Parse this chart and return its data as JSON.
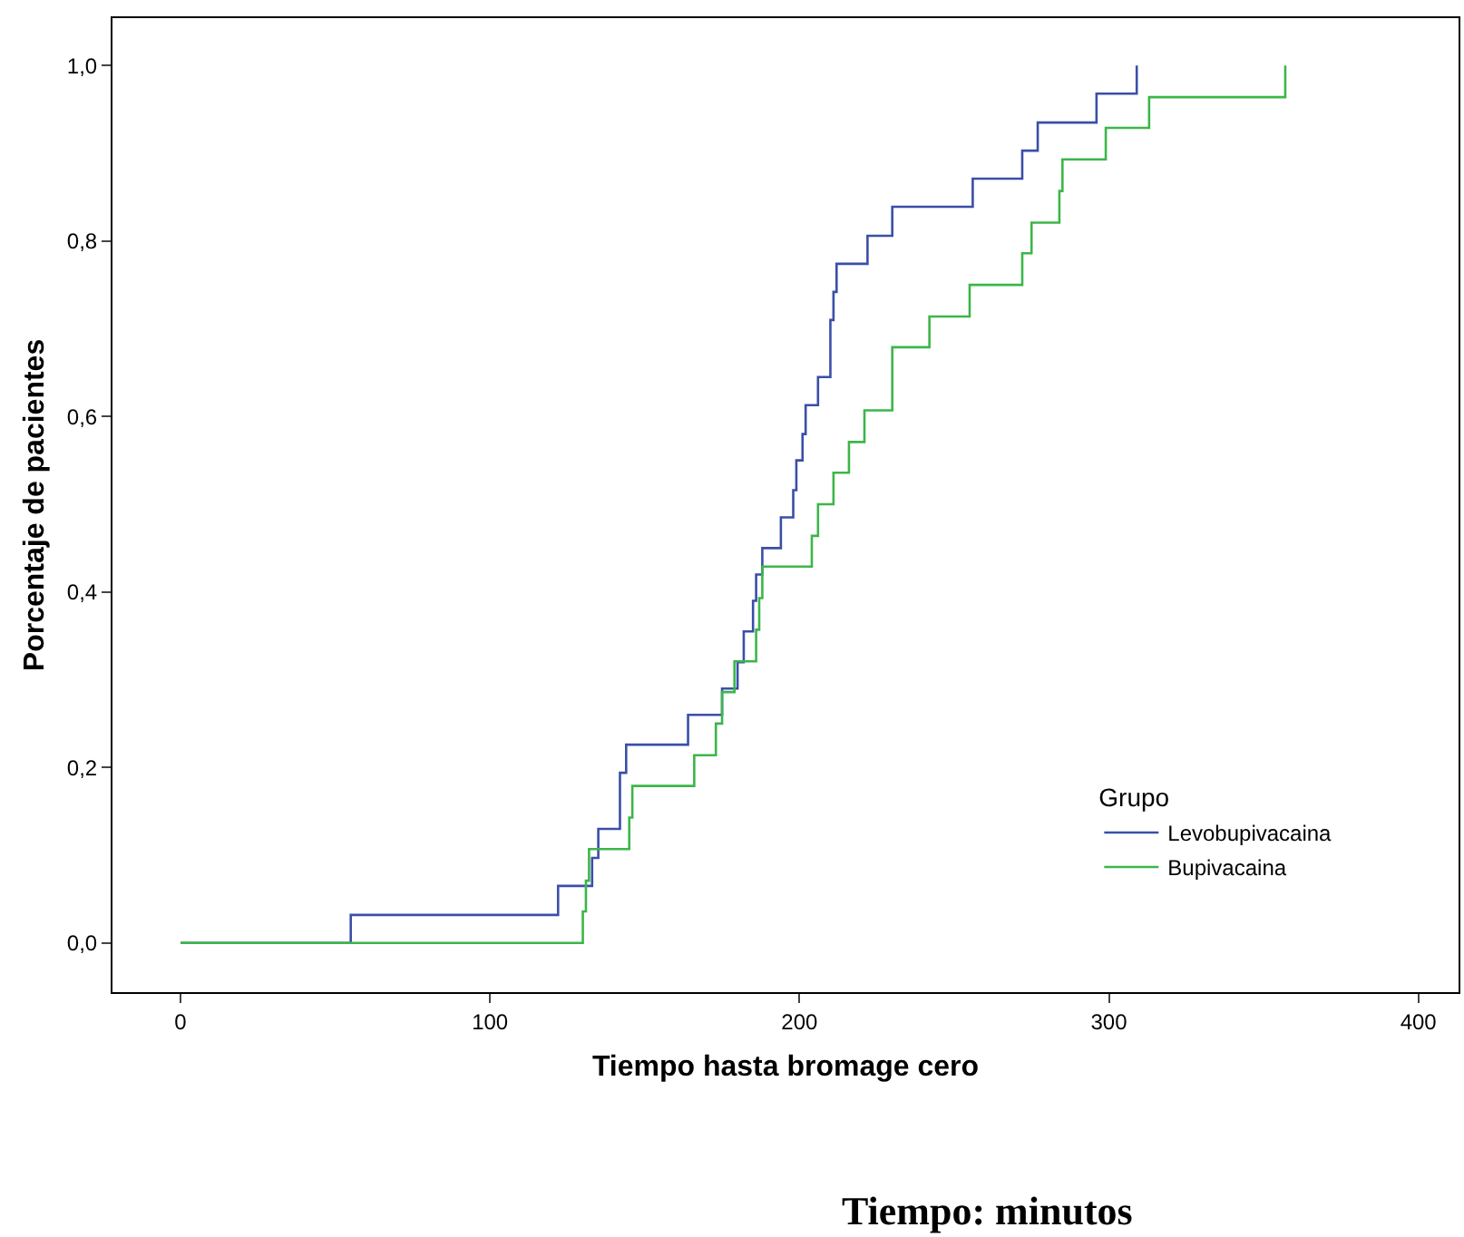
{
  "chart_data": {
    "type": "step",
    "xlabel": "Tiempo hasta bromage cero",
    "ylabel": "Porcentaje de pacientes",
    "legend_title": "Grupo",
    "annotations": [
      "Tiempo: minutos"
    ],
    "series": [
      {
        "name": "Levobupivacaina",
        "color": "#3a4fa8",
        "x": [
          0,
          55,
          122,
          133,
          135,
          142,
          144,
          164,
          175,
          180,
          182,
          185,
          186,
          188,
          194,
          198,
          199,
          201,
          202,
          206,
          210,
          211,
          212,
          222,
          230,
          256,
          272,
          277,
          296,
          309
        ],
        "values": [
          0,
          0.032,
          0.065,
          0.097,
          0.13,
          0.194,
          0.226,
          0.26,
          0.29,
          0.32,
          0.355,
          0.39,
          0.42,
          0.45,
          0.485,
          0.516,
          0.55,
          0.58,
          0.613,
          0.645,
          0.71,
          0.742,
          0.774,
          0.806,
          0.839,
          0.871,
          0.903,
          0.935,
          0.968,
          1.0
        ]
      },
      {
        "name": "Bupivacaina",
        "color": "#3cb64a",
        "x": [
          0,
          130,
          131,
          132,
          145,
          146,
          166,
          173,
          175,
          179,
          186,
          187,
          188,
          204,
          206,
          211,
          216,
          221,
          230,
          242,
          255,
          272,
          275,
          284,
          285,
          299,
          313,
          357
        ],
        "values": [
          0,
          0.036,
          0.071,
          0.107,
          0.143,
          0.179,
          0.214,
          0.25,
          0.286,
          0.321,
          0.357,
          0.393,
          0.429,
          0.464,
          0.5,
          0.536,
          0.571,
          0.607,
          0.679,
          0.714,
          0.75,
          0.786,
          0.821,
          0.857,
          0.893,
          0.929,
          0.964,
          1.0
        ]
      }
    ],
    "xlim": [
      -22,
      413
    ],
    "xticks": [
      0,
      100,
      200,
      300,
      400
    ],
    "ylim": [
      -0.056,
      1.054
    ],
    "yticks": [
      {
        "value": 0,
        "label": "0,0"
      },
      {
        "value": 0.2,
        "label": "0,2"
      },
      {
        "value": 0.4,
        "label": "0,4"
      },
      {
        "value": 0.6,
        "label": "0,6"
      },
      {
        "value": 0.8,
        "label": "0,8"
      },
      {
        "value": 1.0,
        "label": "1,0"
      }
    ],
    "legend": "bottom right",
    "marker": "none",
    "line_style": "solid"
  }
}
